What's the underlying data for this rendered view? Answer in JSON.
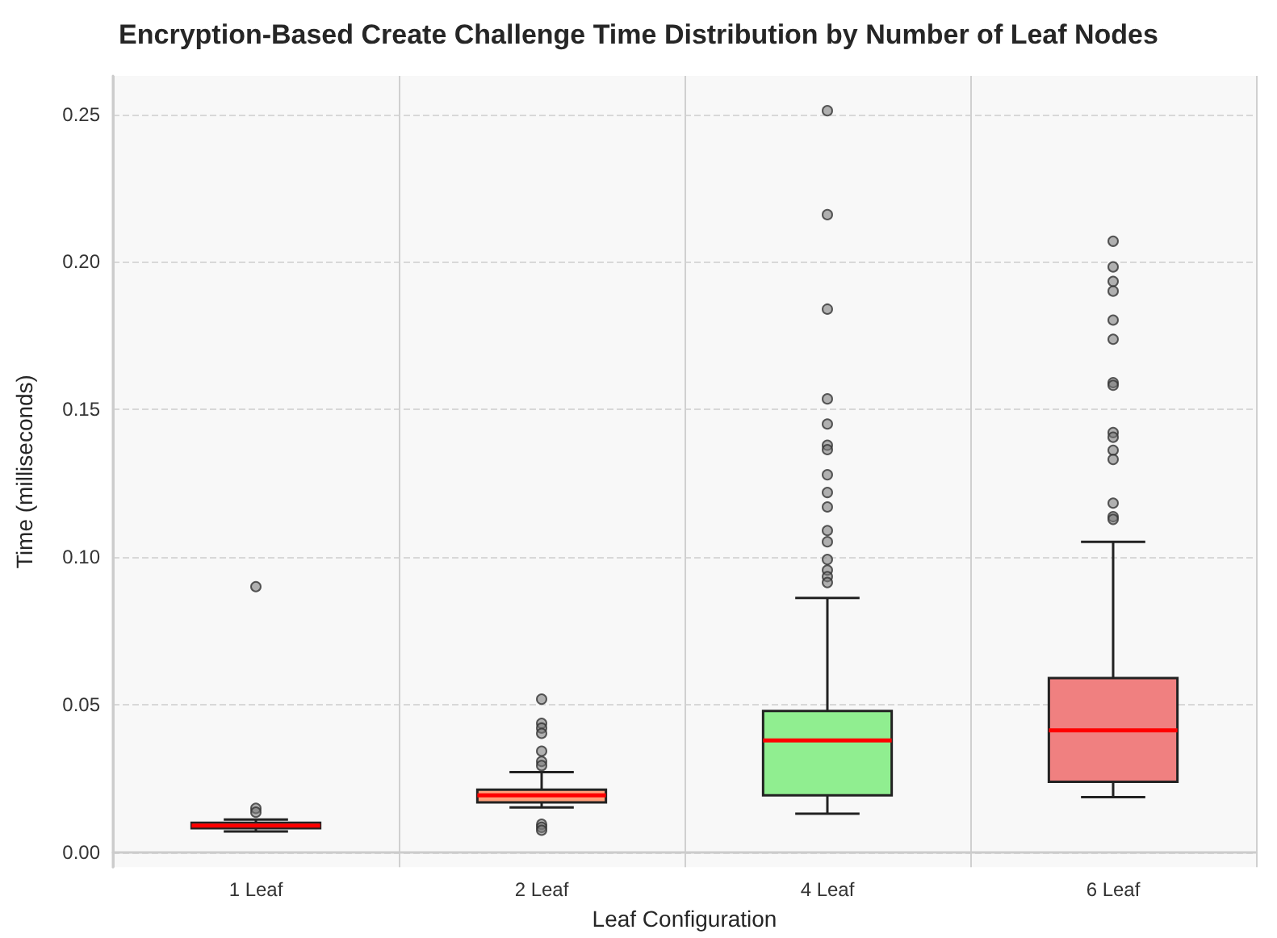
{
  "chart_data": {
    "type": "box",
    "title": "Encryption-Based Create Challenge Time Distribution by Number of Leaf Nodes",
    "xlabel": "Leaf Configuration",
    "ylabel": "Time (milliseconds)",
    "categories": [
      "1 Leaf",
      "2 Leaf",
      "4 Leaf",
      "6 Leaf"
    ],
    "colors": [
      "#add8e6",
      "#ffa07a",
      "#90ee90",
      "#f08080"
    ],
    "boxes": [
      {
        "low": 0.0071,
        "q1": 0.0082,
        "median": 0.0091,
        "q3": 0.01,
        "high": 0.0111,
        "outliers": [
          0.09,
          0.0149,
          0.0136
        ]
      },
      {
        "low": 0.0152,
        "q1": 0.0169,
        "median": 0.0193,
        "q3": 0.0212,
        "high": 0.0272,
        "outliers": [
          0.0519,
          0.0437,
          0.0421,
          0.0403,
          0.0343,
          0.0308,
          0.0294,
          0.0095,
          0.0085,
          0.0075
        ]
      },
      {
        "low": 0.0131,
        "q1": 0.0193,
        "median": 0.0379,
        "q3": 0.0479,
        "high": 0.0862,
        "outliers": [
          0.2512,
          0.216,
          0.184,
          0.1536,
          0.1451,
          0.1379,
          0.1364,
          0.1279,
          0.1219,
          0.117,
          0.109,
          0.1052,
          0.0992,
          0.0956,
          0.0934,
          0.0914
        ]
      },
      {
        "low": 0.0187,
        "q1": 0.0239,
        "median": 0.0413,
        "q3": 0.059,
        "high": 0.1052,
        "outliers": [
          0.207,
          0.1983,
          0.1934,
          0.1901,
          0.1803,
          0.1738,
          0.1591,
          0.1582,
          0.1422,
          0.1406,
          0.1362,
          0.1331,
          0.1183,
          0.1137,
          0.1128
        ]
      }
    ],
    "ylim": [
      -0.005,
      0.263
    ],
    "yticks": [
      {
        "value": 0,
        "label": "0.00"
      },
      {
        "value": 0.05,
        "label": "0.05"
      },
      {
        "value": 0.1,
        "label": "0.10"
      },
      {
        "value": 0.15,
        "label": "0.15"
      },
      {
        "value": 0.2,
        "label": "0.20"
      },
      {
        "value": 0.25,
        "label": "0.25"
      }
    ],
    "grid": true
  }
}
